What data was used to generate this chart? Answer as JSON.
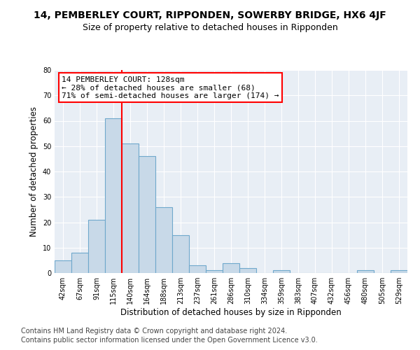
{
  "title_line1": "14, PEMBERLEY COURT, RIPPONDEN, SOWERBY BRIDGE, HX6 4JF",
  "title_line2": "Size of property relative to detached houses in Ripponden",
  "xlabel": "Distribution of detached houses by size in Ripponden",
  "ylabel": "Number of detached properties",
  "bar_labels": [
    "42sqm",
    "67sqm",
    "91sqm",
    "115sqm",
    "140sqm",
    "164sqm",
    "188sqm",
    "213sqm",
    "237sqm",
    "261sqm",
    "286sqm",
    "310sqm",
    "334sqm",
    "359sqm",
    "383sqm",
    "407sqm",
    "432sqm",
    "456sqm",
    "480sqm",
    "505sqm",
    "529sqm"
  ],
  "bar_values": [
    5,
    8,
    21,
    61,
    51,
    46,
    26,
    15,
    3,
    1,
    4,
    2,
    0,
    1,
    0,
    0,
    0,
    0,
    1,
    0,
    1
  ],
  "bar_color": "#c8d9e8",
  "bar_edge_color": "#6fa8cc",
  "annotation_text": "14 PEMBERLEY COURT: 128sqm\n← 28% of detached houses are smaller (68)\n71% of semi-detached houses are larger (174) →",
  "annotation_box_color": "white",
  "annotation_box_edge": "red",
  "vline_color": "red",
  "vline_x": 3.5,
  "ylim": [
    0,
    80
  ],
  "yticks": [
    0,
    10,
    20,
    30,
    40,
    50,
    60,
    70,
    80
  ],
  "background_color": "#e8eef5",
  "footer_line1": "Contains HM Land Registry data © Crown copyright and database right 2024.",
  "footer_line2": "Contains public sector information licensed under the Open Government Licence v3.0.",
  "title_fontsize": 10,
  "subtitle_fontsize": 9,
  "xlabel_fontsize": 8.5,
  "ylabel_fontsize": 8.5,
  "footer_fontsize": 7,
  "annotation_fontsize": 8,
  "tick_fontsize": 7
}
